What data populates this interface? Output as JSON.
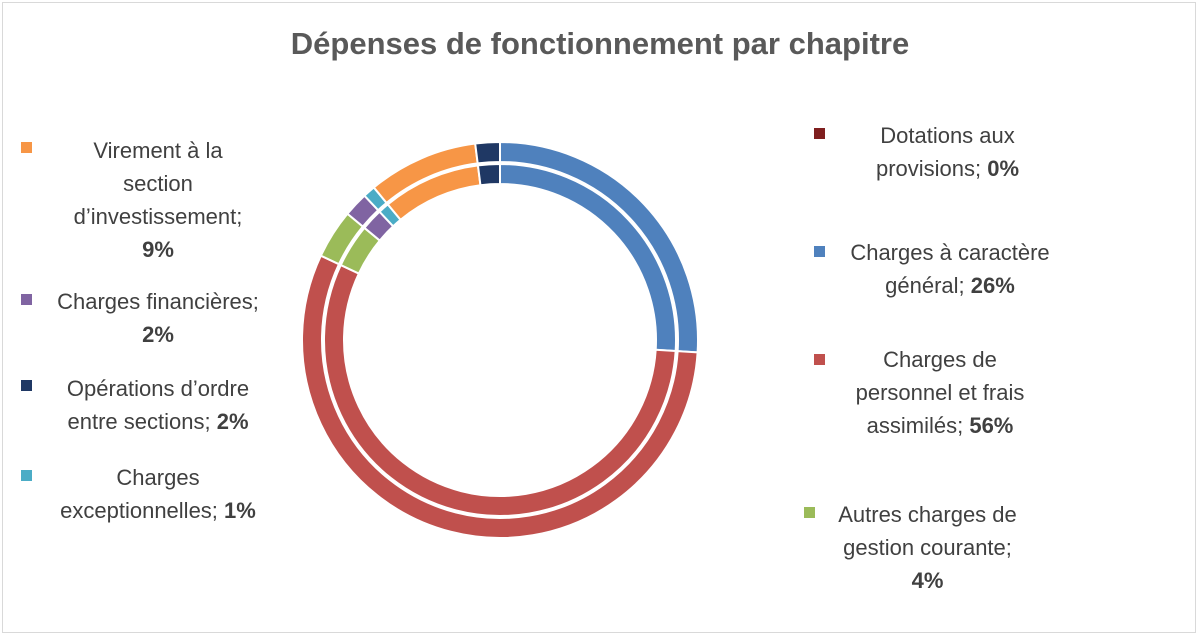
{
  "chart_data": {
    "type": "pie",
    "variant": "double-ring doughnut",
    "title": "Dépenses de fonctionnement par chapitre",
    "slices": [
      {
        "label": "Charges à caractère général",
        "value": 26,
        "value_label": "26%",
        "color": "#4f81bd"
      },
      {
        "label": "Charges de personnel et frais assimilés",
        "value": 56,
        "value_label": "56%",
        "color": "#c0504d"
      },
      {
        "label": "Autres charges de gestion courante",
        "value": 4,
        "value_label": "4%",
        "color": "#9bbb59"
      },
      {
        "label": "Charges financières",
        "value": 2,
        "value_label": "2%",
        "color": "#8064a2"
      },
      {
        "label": "Charges exceptionnelles",
        "value": 1,
        "value_label": "1%",
        "color": "#4bacc6"
      },
      {
        "label": "Dotations aux provisions",
        "value": 0,
        "value_label": "0%",
        "color": "#7f1f1f"
      },
      {
        "label": "Virement à la section d’investissement",
        "value": 9,
        "value_label": "9%",
        "color": "#f79646"
      },
      {
        "label": "Opérations d’ordre entre sections",
        "value": 2,
        "value_label": "2%",
        "color": "#1f3864"
      }
    ],
    "legend": {
      "left": [
        {
          "lines": [
            "Virement à la",
            "section",
            "d’investissement;"
          ],
          "value_line": "9%",
          "color": "#f79646"
        },
        {
          "lines": [
            "Charges financières;"
          ],
          "value_line": "2%",
          "color": "#8064a2"
        },
        {
          "lines": [
            "Opérations d’ordre",
            "entre sections;"
          ],
          "value_inline": "2%",
          "color": "#1f3864"
        },
        {
          "lines": [
            "Charges",
            "exceptionnelles;"
          ],
          "value_inline": "1%",
          "color": "#4bacc6"
        }
      ],
      "right": [
        {
          "lines": [
            "Dotations aux",
            "provisions;"
          ],
          "value_inline": "0%",
          "color": "#7f1f1f"
        },
        {
          "lines": [
            "Charges à caractère",
            "général;"
          ],
          "value_inline": "26%",
          "color": "#4f81bd"
        },
        {
          "lines": [
            "Charges de",
            "personnel et frais",
            "assimilés;"
          ],
          "value_inline": "56%",
          "color": "#c0504d"
        },
        {
          "lines": [
            "Autres charges de",
            "gestion courante;"
          ],
          "value_line": "4%",
          "color": "#9bbb59"
        }
      ]
    }
  }
}
